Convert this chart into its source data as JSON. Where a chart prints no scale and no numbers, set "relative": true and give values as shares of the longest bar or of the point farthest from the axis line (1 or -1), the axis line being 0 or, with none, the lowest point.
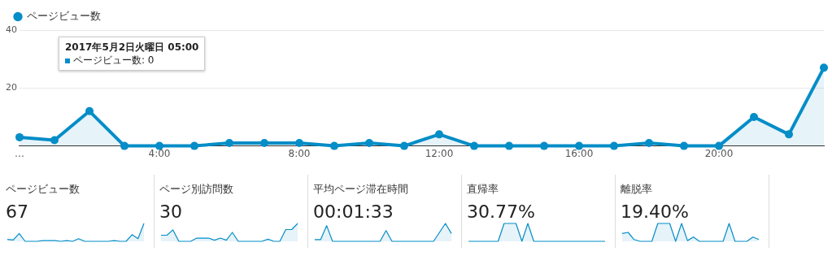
{
  "chart_data": [
    {
      "type": "area",
      "x": [
        0,
        1,
        2,
        3,
        4,
        5,
        6,
        7,
        8,
        9,
        10,
        11,
        12,
        13,
        14,
        15,
        16,
        17,
        18,
        19,
        20,
        21,
        22,
        23
      ],
      "series": [
        {
          "name": "ページビュー数",
          "color": "#058dc7",
          "values": [
            3,
            2,
            12,
            0,
            0,
            0,
            1,
            1,
            1,
            0,
            1,
            0,
            4,
            0,
            0,
            0,
            0,
            0,
            1,
            0,
            0,
            10,
            4,
            27
          ]
        }
      ],
      "xlim": [
        0,
        23
      ],
      "xticks": [
        {
          "value": 0,
          "label": "…"
        },
        {
          "value": 4,
          "label": "4:00"
        },
        {
          "value": 8,
          "label": "8:00"
        },
        {
          "value": 12,
          "label": "12:00"
        },
        {
          "value": 16,
          "label": "16:00"
        },
        {
          "value": 20,
          "label": "20:00"
        }
      ],
      "ylim": [
        0,
        40
      ],
      "yticks": [
        {
          "value": 0,
          "label": null
        },
        20,
        40
      ],
      "grid": "y",
      "legend": "top left",
      "marker": "circle",
      "annotations": [
        "2017年5月2日火曜日 05:00",
        "ページビュー数: 0"
      ]
    },
    {
      "type": "area",
      "title": "ページビュー数",
      "annotations": [
        "67"
      ],
      "relative": true,
      "categories": [
        null,
        null,
        null,
        null,
        null,
        null,
        null,
        null,
        null,
        null,
        null,
        null,
        null,
        null,
        null,
        null,
        null,
        null,
        null,
        null,
        null,
        null,
        null,
        null
      ],
      "series": [
        {
          "color": "#058dc7",
          "values": [
            0.11,
            0.07,
            0.44,
            0,
            0,
            0,
            0.04,
            0.04,
            0.04,
            0,
            0.04,
            0,
            0.15,
            0,
            0,
            0,
            0,
            0,
            0.04,
            0,
            0,
            0.37,
            0.15,
            1
          ]
        }
      ]
    },
    {
      "type": "area",
      "title": "ページ別訪問数",
      "annotations": [
        "30"
      ],
      "relative": true,
      "categories": [
        null,
        null,
        null,
        null,
        null,
        null,
        null,
        null,
        null,
        null,
        null,
        null,
        null,
        null,
        null,
        null,
        null,
        null,
        null,
        null,
        null,
        null,
        null,
        null
      ],
      "series": [
        {
          "color": "#058dc7",
          "values": [
            0.34,
            0.34,
            0.64,
            0,
            0,
            0,
            0.18,
            0.18,
            0.18,
            0.06,
            0.18,
            0.06,
            0.5,
            0,
            0,
            0,
            0,
            0,
            0.12,
            0,
            0,
            0.66,
            0.66,
            1
          ]
        }
      ]
    },
    {
      "type": "area",
      "title": "平均ページ滞在時間",
      "annotations": [
        "00:01:33"
      ],
      "relative": true,
      "categories": [
        null,
        null,
        null,
        null,
        null,
        null,
        null,
        null,
        null,
        null,
        null,
        null,
        null,
        null,
        null,
        null,
        null,
        null,
        null,
        null,
        null,
        null,
        null,
        null
      ],
      "series": [
        {
          "color": "#058dc7",
          "values": [
            0.1,
            0.1,
            0.88,
            0,
            0,
            0,
            0,
            0,
            0,
            0,
            0,
            0,
            0.6,
            0,
            0,
            0,
            0,
            0,
            0,
            0,
            0,
            0.5,
            1,
            0.44
          ]
        }
      ]
    },
    {
      "type": "area",
      "title": "直帰率",
      "annotations": [
        "30.77%"
      ],
      "relative": true,
      "categories": [
        null,
        null,
        null,
        null,
        null,
        null,
        null,
        null,
        null,
        null,
        null,
        null,
        null,
        null,
        null,
        null,
        null,
        null,
        null,
        null,
        null,
        null,
        null,
        null
      ],
      "series": [
        {
          "color": "#058dc7",
          "values": [
            0,
            0,
            0,
            0,
            0,
            0,
            1,
            1,
            1,
            0,
            1,
            0,
            0,
            0,
            0,
            0,
            0,
            0,
            0,
            0,
            0,
            0,
            0,
            0
          ]
        }
      ]
    },
    {
      "type": "area",
      "title": "離脱率",
      "annotations": [
        "19.40%"
      ],
      "relative": true,
      "categories": [
        null,
        null,
        null,
        null,
        null,
        null,
        null,
        null,
        null,
        null,
        null,
        null,
        null,
        null,
        null,
        null,
        null,
        null,
        null,
        null,
        null,
        null,
        null,
        null
      ],
      "series": [
        {
          "color": "#058dc7",
          "values": [
            0.44,
            0.5,
            0.1,
            0,
            0,
            0,
            1,
            1,
            1,
            0,
            1,
            0.04,
            0.24,
            0,
            0,
            0,
            0,
            0,
            1,
            0,
            0,
            0,
            0.24,
            0.1
          ]
        }
      ]
    }
  ]
}
